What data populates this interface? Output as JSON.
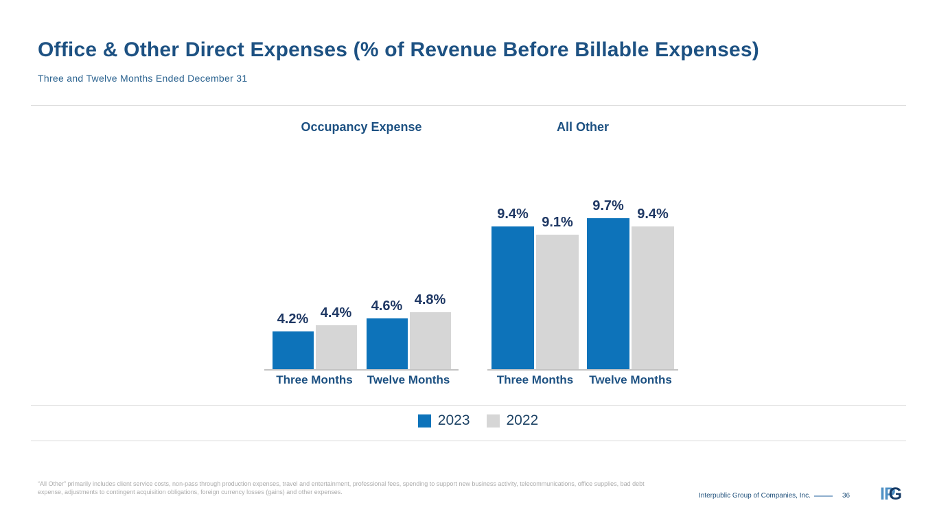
{
  "slide": {
    "title": "Office & Other Direct Expenses (% of Revenue Before Billable Expenses)",
    "subtitle": "Three and Twelve Months Ended December 31"
  },
  "chart_data": {
    "type": "bar",
    "grid": false,
    "legend_position": "bottom",
    "legend": [
      {
        "label": "2023",
        "color": "#0D73BA"
      },
      {
        "label": "2022",
        "color": "#D6D6D6"
      }
    ],
    "charts": [
      {
        "title": "Occupancy Expense",
        "categories": [
          "Three Months",
          "Twelve Months"
        ],
        "series": [
          {
            "name": "2023",
            "values": [
              4.2,
              4.6
            ]
          },
          {
            "name": "2022",
            "values": [
              4.4,
              4.8
            ]
          }
        ],
        "data_labels": [
          [
            "4.2%",
            "4.4%"
          ],
          [
            "4.6%",
            "4.8%"
          ]
        ],
        "unit": "%",
        "ylim": [
          3.0,
          5.2
        ]
      },
      {
        "title": "All Other",
        "categories": [
          "Three Months",
          "Twelve Months"
        ],
        "series": [
          {
            "name": "2023",
            "values": [
              9.4,
              9.7
            ]
          },
          {
            "name": "2022",
            "values": [
              9.1,
              9.4
            ]
          }
        ],
        "data_labels": [
          [
            "9.4%",
            "9.1%"
          ],
          [
            "9.7%",
            "9.4%"
          ]
        ],
        "unit": "%",
        "ylim": [
          4.2,
          10.2
        ]
      }
    ]
  },
  "footnote": {
    "lines": [
      "“All Other” primarily includes client service costs, non-pass through production expenses, travel and entertainment, professional fees, spending to support new business activity, telecommunications, office supplies, bad debt",
      "expense, adjustments to contingent acquisition obligations, foreign currency losses (gains) and other expenses."
    ]
  },
  "footer": {
    "company": "Interpublic Group of Companies, Inc.",
    "page_number": "36",
    "logo_left": "IP",
    "logo_right": "G"
  }
}
